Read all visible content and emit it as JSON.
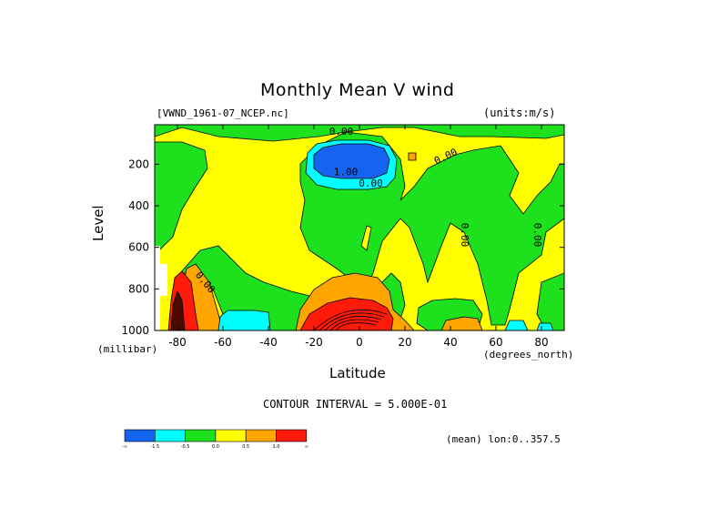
{
  "header": {
    "title": "Monthly Mean V wind",
    "file_label": "[VWND_1961-07_NCEP.nc]",
    "units_label": "(units:m/s)"
  },
  "footer": {
    "contour_interval": "CONTOUR INTERVAL = 5.000E-01",
    "mean_label": "(mean) lon:0..357.5"
  },
  "colors": {
    "blue": "#1464f0",
    "cyan": "#00ffff",
    "green": "#1ee11e",
    "yellow": "#ffff00",
    "orange": "#ffa500",
    "red": "#ff1a0a",
    "dark": "#4a0a00"
  },
  "chart_data": {
    "type": "heatmap",
    "title": "Monthly Mean V wind",
    "xlabel": "Latitude",
    "xunit": "(degrees_north)",
    "ylabel": "Level",
    "yunit": "(millibar)",
    "xlim": [
      -90,
      90
    ],
    "ylim": [
      1000,
      10
    ],
    "x_ticks": [
      {
        "v": -80,
        "label": "-80"
      },
      {
        "v": -60,
        "label": "-60"
      },
      {
        "v": -40,
        "label": "-40"
      },
      {
        "v": -20,
        "label": "-20"
      },
      {
        "v": 0,
        "label": "0"
      },
      {
        "v": 20,
        "label": "20"
      },
      {
        "v": 40,
        "label": "40"
      },
      {
        "v": 60,
        "label": "60"
      },
      {
        "v": 80,
        "label": "80"
      }
    ],
    "y_ticks": [
      {
        "v": 200,
        "label": "200"
      },
      {
        "v": 400,
        "label": "400"
      },
      {
        "v": 600,
        "label": "600"
      },
      {
        "v": 800,
        "label": "800"
      },
      {
        "v": 1000,
        "label": "1000"
      }
    ],
    "colorbar": {
      "bins": [
        "-∞",
        "-1.5",
        "-0.5",
        "0.0",
        "0.5",
        "1.0",
        "∞"
      ],
      "colors": [
        "#1464f0",
        "#00ffff",
        "#1ee11e",
        "#ffff00",
        "#ffa500",
        "#ff1a0a"
      ]
    },
    "contour_labels": [
      {
        "text": "0.00",
        "lat": -8,
        "lev": 45,
        "rot": 0
      },
      {
        "text": "1.00",
        "lat": -6,
        "lev": 240,
        "rot": 0
      },
      {
        "text": "0.00",
        "lat": 5,
        "lev": 295,
        "rot": 0
      },
      {
        "text": "0.00",
        "lat": 38,
        "lev": 165,
        "rot": -25
      },
      {
        "text": "0.00",
        "lat": 46,
        "lev": 540,
        "rot": 90
      },
      {
        "text": "0.00",
        "lat": 78,
        "lev": 540,
        "rot": 90
      },
      {
        "text": "0.00",
        "lat": -68,
        "lev": 770,
        "rot": 50
      }
    ]
  }
}
